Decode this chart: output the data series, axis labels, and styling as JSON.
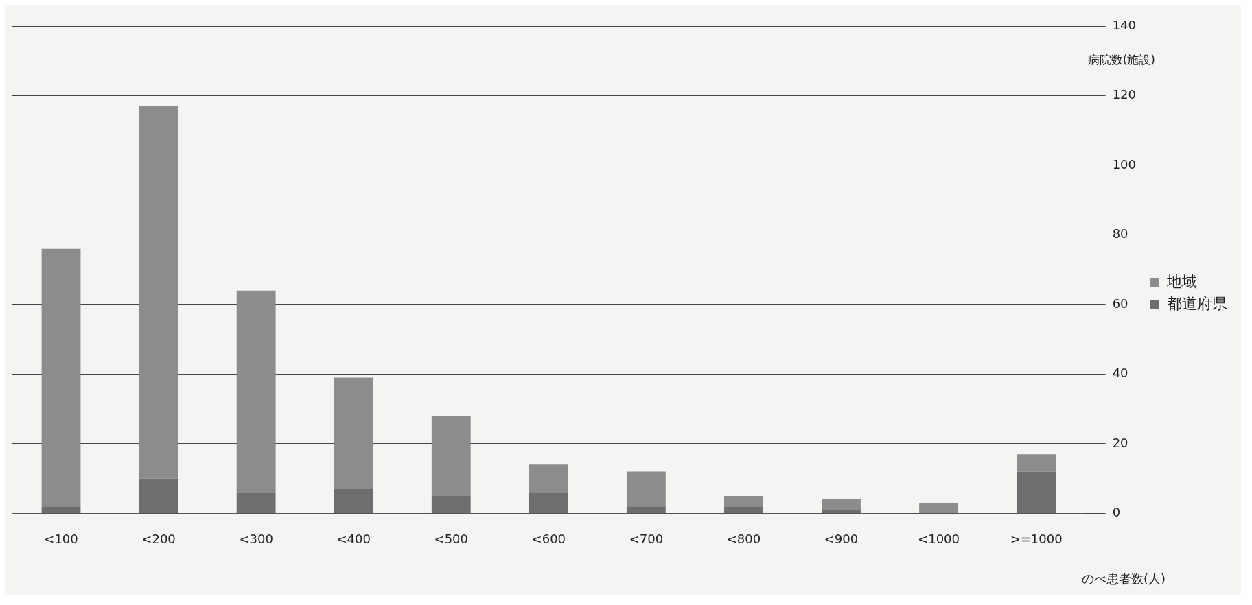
{
  "chart_data": {
    "type": "bar",
    "stacked": true,
    "xlabel": "のべ患者数(人)",
    "ylabel": "病院数(施設)",
    "categories": [
      "<100",
      "<200",
      "<300",
      "<400",
      "<500",
      "<600",
      "<700",
      "<800",
      "<900",
      "<1000",
      ">=1000"
    ],
    "series": [
      {
        "name": "都道府県",
        "color": "#6e6e6e",
        "values": [
          2,
          10,
          6,
          7,
          5,
          6,
          2,
          2,
          1,
          0,
          12
        ]
      },
      {
        "name": "地域",
        "color": "#8c8c8c",
        "values": [
          74,
          107,
          58,
          32,
          23,
          8,
          10,
          3,
          3,
          3,
          5
        ]
      }
    ],
    "ylim": [
      0,
      140
    ],
    "yticks": [
      0,
      20,
      40,
      60,
      80,
      100,
      120,
      140
    ],
    "grid": "y",
    "legend": "right"
  }
}
